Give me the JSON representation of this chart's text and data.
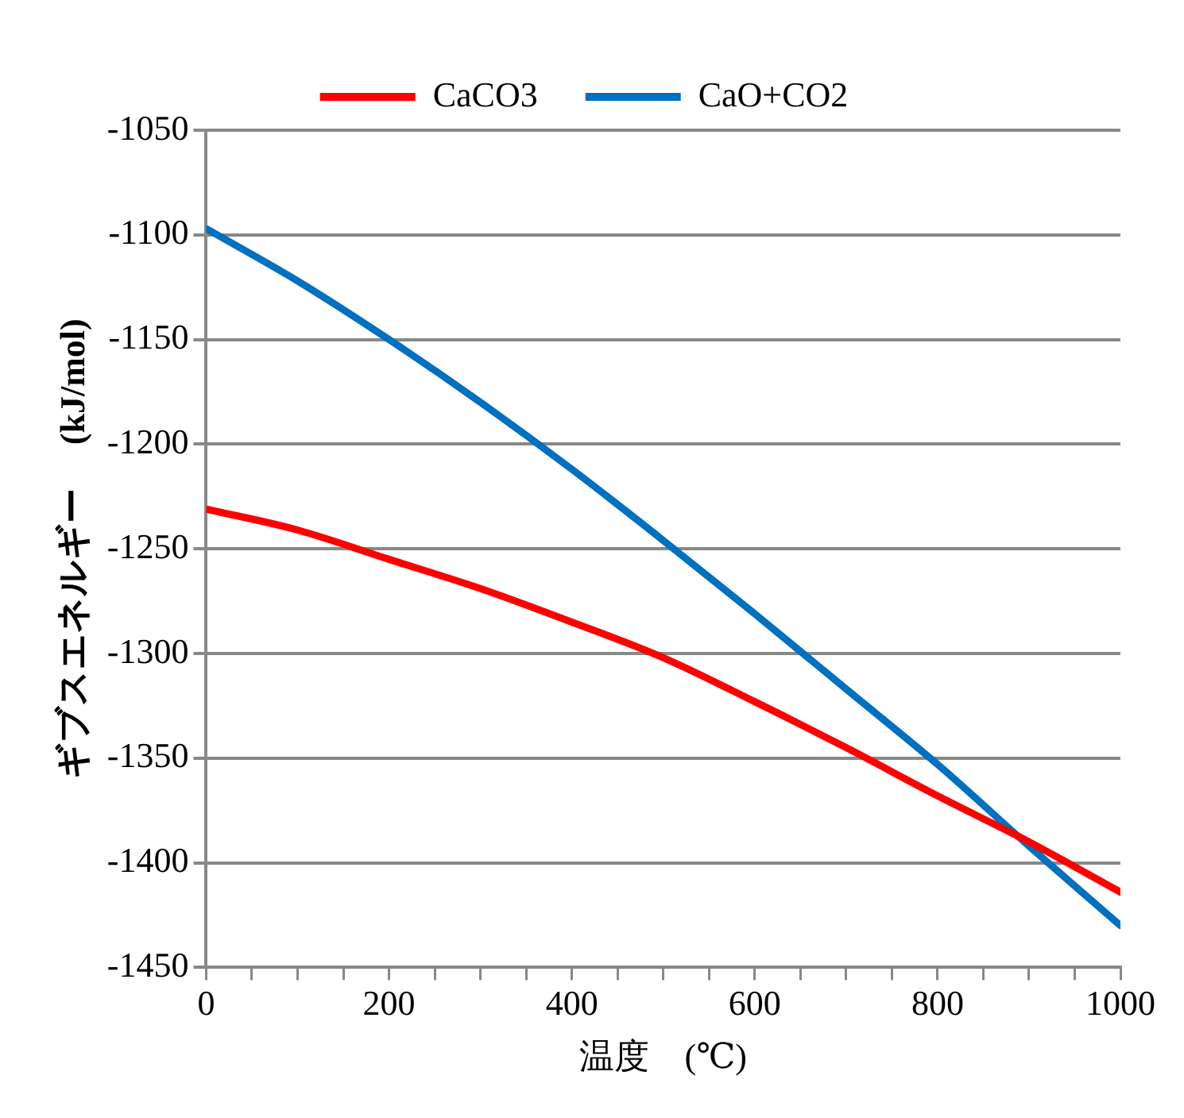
{
  "chart_data": {
    "type": "line",
    "xlabel": "温度　(℃)",
    "ylabel": "ギブスエネルギー　 (kJ/mol)",
    "x": [
      0,
      100,
      200,
      300,
      400,
      500,
      600,
      700,
      800,
      900,
      1000
    ],
    "series": [
      {
        "name": "CaCO3",
        "color": "#ff0000",
        "values": [
          -1231,
          -1241,
          -1255,
          -1269,
          -1285,
          -1302,
          -1323,
          -1345,
          -1368,
          -1390,
          -1414
        ]
      },
      {
        "name": "CaO+CO2",
        "color": "#0070c0",
        "values": [
          -1097,
          -1122,
          -1150,
          -1180,
          -1212,
          -1246,
          -1281,
          -1317,
          -1353,
          -1392,
          -1430
        ]
      }
    ],
    "xlim": [
      0,
      1000
    ],
    "xticks": [
      0,
      {
        "value": 50,
        "label": null
      },
      {
        "value": 100,
        "label": null
      },
      {
        "value": 150,
        "label": null
      },
      200,
      {
        "value": 250,
        "label": null
      },
      {
        "value": 300,
        "label": null
      },
      {
        "value": 350,
        "label": null
      },
      400,
      {
        "value": 450,
        "label": null
      },
      {
        "value": 500,
        "label": null
      },
      {
        "value": 550,
        "label": null
      },
      600,
      {
        "value": 650,
        "label": null
      },
      {
        "value": 700,
        "label": null
      },
      {
        "value": 750,
        "label": null
      },
      800,
      {
        "value": 850,
        "label": null
      },
      {
        "value": 900,
        "label": null
      },
      {
        "value": 950,
        "label": null
      },
      1000
    ],
    "ylim": [
      -1450,
      -1050
    ],
    "yticks": [
      -1450,
      -1400,
      -1350,
      -1300,
      -1250,
      -1200,
      -1150,
      -1100,
      -1050
    ],
    "grid": "y",
    "legend": "top",
    "marker": "none",
    "line_style": "solid"
  }
}
